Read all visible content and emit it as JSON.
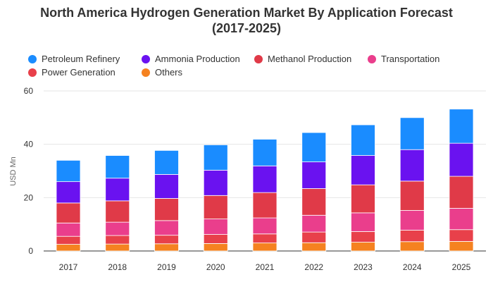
{
  "chart_data": {
    "type": "bar",
    "stacked": true,
    "title_lines": [
      "North America Hydrogen Generation Market By Application Forecast",
      "(2017-2025)"
    ],
    "xlabel": "",
    "ylabel": "USD Mn",
    "ylim": [
      0,
      60
    ],
    "yticks": [
      0,
      20,
      40,
      60
    ],
    "grid": true,
    "legend_position": "top",
    "categories": [
      "2017",
      "2018",
      "2019",
      "2020",
      "2021",
      "2022",
      "2023",
      "2024",
      "2025"
    ],
    "series": [
      {
        "name": "Petroleum Refinery",
        "color": "#1a8cff",
        "values": [
          8.0,
          8.5,
          9.0,
          9.5,
          10.0,
          11.0,
          11.5,
          12.0,
          12.8
        ]
      },
      {
        "name": "Ammonia Production",
        "color": "#6a12f0",
        "values": [
          8.0,
          8.5,
          9.0,
          9.5,
          10.0,
          10.0,
          11.0,
          11.8,
          12.4
        ]
      },
      {
        "name": "Methanol Production",
        "color": "#e03a48",
        "values": [
          7.5,
          8.0,
          8.3,
          8.8,
          9.5,
          10.0,
          10.5,
          11.0,
          12.0
        ]
      },
      {
        "name": "Transportation",
        "color": "#ea3e8c",
        "values": [
          5.0,
          5.0,
          5.5,
          5.8,
          6.0,
          6.3,
          7.0,
          7.4,
          8.0
        ]
      },
      {
        "name": "Power Generation",
        "color": "#e8404a",
        "values": [
          3.0,
          3.2,
          3.2,
          3.4,
          3.4,
          4.0,
          4.0,
          4.3,
          4.4
        ]
      },
      {
        "name": "Others",
        "color": "#f58220",
        "values": [
          2.5,
          2.6,
          2.7,
          2.8,
          3.0,
          3.1,
          3.3,
          3.5,
          3.6
        ]
      }
    ]
  }
}
